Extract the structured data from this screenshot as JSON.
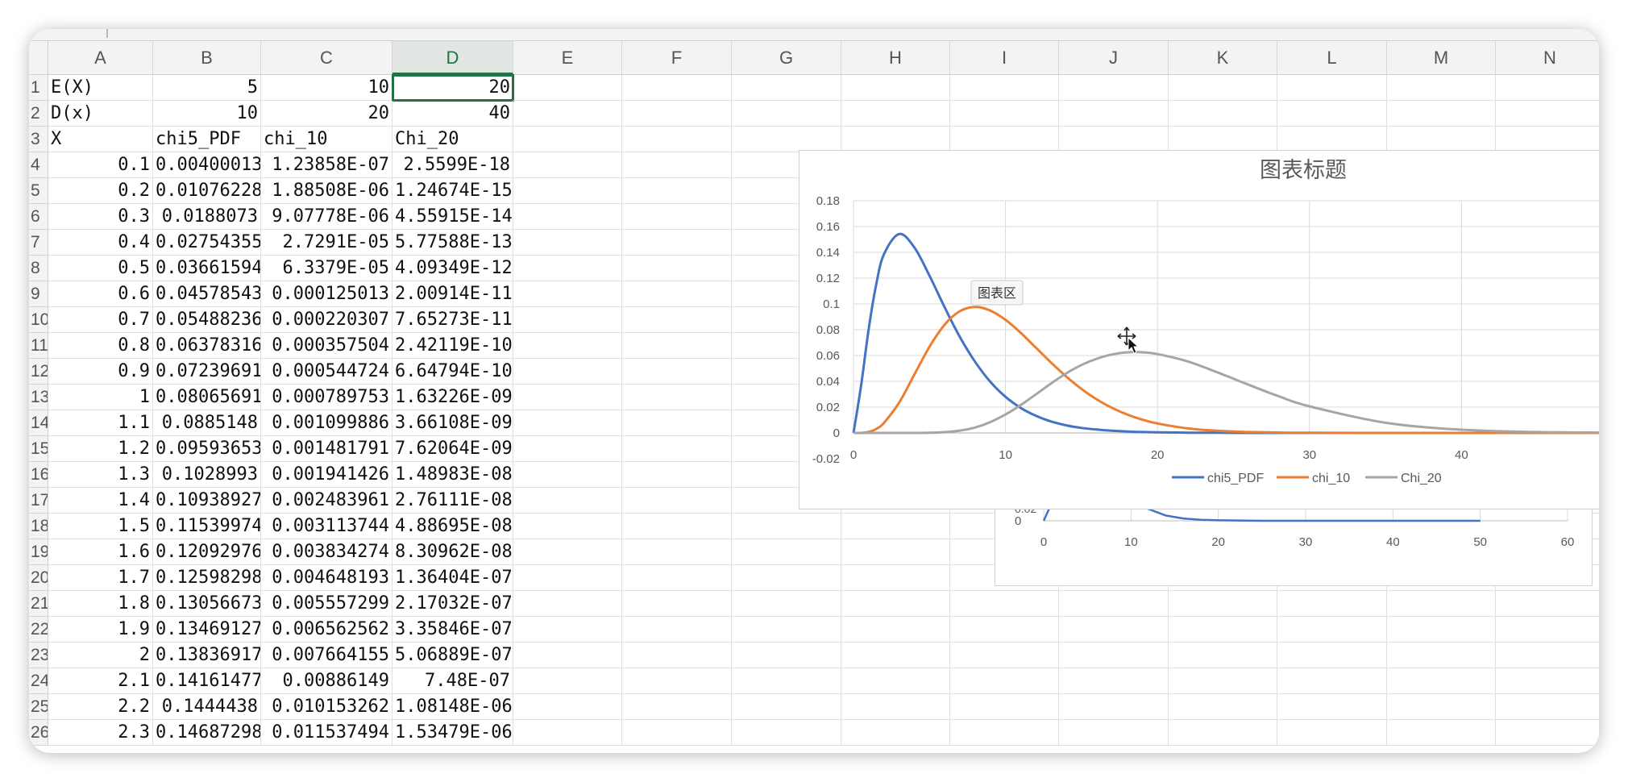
{
  "columns": [
    "A",
    "B",
    "C",
    "D",
    "E",
    "F",
    "G",
    "H",
    "I",
    "J",
    "K",
    "L",
    "M",
    "N"
  ],
  "selected_column": "D",
  "row_labels": [
    "1",
    "2",
    "3",
    "4",
    "5",
    "6",
    "7",
    "8",
    "9",
    "10",
    "11",
    "12",
    "13",
    "14",
    "15",
    "16",
    "17",
    "18",
    "19",
    "20",
    "21",
    "22",
    "23",
    "24",
    "25",
    "26"
  ],
  "rows": [
    [
      "E(X)",
      "5",
      "10",
      "20"
    ],
    [
      "D(x)",
      "10",
      "20",
      "40"
    ],
    [
      "X",
      "chi5_PDF",
      "chi_10",
      "Chi_20"
    ],
    [
      "0.1",
      "0.00400013",
      "1.23858E-07",
      "2.5599E-18"
    ],
    [
      "0.2",
      "0.01076228",
      "1.88508E-06",
      "1.24674E-15"
    ],
    [
      "0.3",
      "0.0188073",
      "9.07778E-06",
      "4.55915E-14"
    ],
    [
      "0.4",
      "0.02754355",
      "2.7291E-05",
      "5.77588E-13"
    ],
    [
      "0.5",
      "0.03661594",
      "6.3379E-05",
      "4.09349E-12"
    ],
    [
      "0.6",
      "0.04578543",
      "0.000125013",
      "2.00914E-11"
    ],
    [
      "0.7",
      "0.05488236",
      "0.000220307",
      "7.65273E-11"
    ],
    [
      "0.8",
      "0.06378316",
      "0.000357504",
      "2.42119E-10"
    ],
    [
      "0.9",
      "0.07239691",
      "0.000544724",
      "6.64794E-10"
    ],
    [
      "1",
      "0.08065691",
      "0.000789753",
      "1.63226E-09"
    ],
    [
      "1.1",
      "0.0885148",
      "0.001099886",
      "3.66108E-09"
    ],
    [
      "1.2",
      "0.09593653",
      "0.001481791",
      "7.62064E-09"
    ],
    [
      "1.3",
      "0.1028993",
      "0.001941426",
      "1.48983E-08"
    ],
    [
      "1.4",
      "0.10938927",
      "0.002483961",
      "2.76111E-08"
    ],
    [
      "1.5",
      "0.11539974",
      "0.003113744",
      "4.88695E-08"
    ],
    [
      "1.6",
      "0.12092976",
      "0.003834274",
      "8.30962E-08"
    ],
    [
      "1.7",
      "0.12598298",
      "0.004648193",
      "1.36404E-07"
    ],
    [
      "1.8",
      "0.13056673",
      "0.005557299",
      "2.17032E-07"
    ],
    [
      "1.9",
      "0.13469127",
      "0.006562562",
      "3.35846E-07"
    ],
    [
      "2",
      "0.13836917",
      "0.007664155",
      "5.06889E-07"
    ],
    [
      "2.1",
      "0.14161477",
      "0.00886149",
      "7.48E-07"
    ],
    [
      "2.2",
      "0.1444438",
      "0.010153262",
      "1.08148E-06"
    ],
    [
      "2.3",
      "0.14687298",
      "0.011537494",
      "1.53479E-06"
    ]
  ],
  "chart_tooltip": "图表区",
  "chart_data": [
    {
      "type": "line",
      "title": "图表标题",
      "xlim": [
        0,
        50
      ],
      "ylim": [
        -0.02,
        0.18
      ],
      "x_ticks": [
        "0",
        "10",
        "20",
        "30",
        "40"
      ],
      "y_ticks": [
        "-0.02",
        "0",
        "0.02",
        "0.04",
        "0.06",
        "0.08",
        "0.1",
        "0.12",
        "0.14",
        "0.16",
        "0.18"
      ],
      "grid": true,
      "legend": "bottom",
      "x": [
        0,
        0.5,
        1,
        1.5,
        2,
        3,
        4,
        5,
        6,
        7,
        8,
        9,
        10,
        11,
        12,
        13,
        14,
        15,
        16,
        17,
        18,
        19,
        20,
        22,
        24,
        26,
        28,
        30,
        35,
        40,
        45,
        50
      ],
      "series": [
        {
          "name": "chi5_PDF",
          "color": "#4472c4",
          "values": [
            0,
            0.0366,
            0.0807,
            0.1154,
            0.1384,
            0.1542,
            0.1439,
            0.1219,
            0.0973,
            0.0744,
            0.0551,
            0.0397,
            0.028,
            0.0194,
            0.0133,
            0.0089,
            0.0059,
            0.0039,
            0.0026,
            0.0017,
            0.0011,
            0.0007,
            0.0005,
            0.0002,
            0.0001,
            0,
            0,
            0,
            0,
            0,
            0,
            0
          ]
        },
        {
          "name": "chi_10",
          "color": "#ed7d31",
          "values": [
            0,
            0,
            0.0008,
            0.0031,
            0.0077,
            0.0235,
            0.0451,
            0.0668,
            0.084,
            0.0944,
            0.0977,
            0.0949,
            0.0877,
            0.0776,
            0.0661,
            0.0545,
            0.0437,
            0.0341,
            0.026,
            0.0195,
            0.0143,
            0.0103,
            0.0073,
            0.0035,
            0.0016,
            0.0007,
            0.0003,
            0.0001,
            0,
            0,
            0,
            0
          ]
        },
        {
          "name": "Chi_20",
          "color": "#a5a5a5",
          "values": [
            0,
            0,
            0,
            0,
            0,
            0,
            0,
            0.0001,
            0.0006,
            0.0018,
            0.0042,
            0.0084,
            0.0143,
            0.0216,
            0.0299,
            0.0384,
            0.0462,
            0.0527,
            0.0575,
            0.0608,
            0.0625,
            0.0625,
            0.0611,
            0.0554,
            0.0467,
            0.0373,
            0.0283,
            0.0206,
            0.0079,
            0.0025,
            0.0007,
            0.0002
          ]
        }
      ]
    },
    {
      "type": "line",
      "title": "",
      "xlim": [
        0,
        60
      ],
      "x_ticks": [
        "0",
        "10",
        "20",
        "30",
        "40",
        "50",
        "60"
      ],
      "y_ticks": [
        "0",
        "0.02"
      ],
      "grid": true,
      "x": [
        0,
        1,
        3,
        5,
        8,
        10,
        12,
        14,
        16,
        18,
        20,
        25,
        30,
        40,
        50
      ],
      "series": [
        {
          "name": "chi5_PDF",
          "color": "#4472c4",
          "values": [
            0,
            0.0807,
            0.1542,
            0.1219,
            0.0551,
            0.028,
            0.0133,
            0.0059,
            0.0026,
            0.0011,
            0.0005,
            0,
            0,
            0,
            0
          ]
        }
      ]
    }
  ]
}
